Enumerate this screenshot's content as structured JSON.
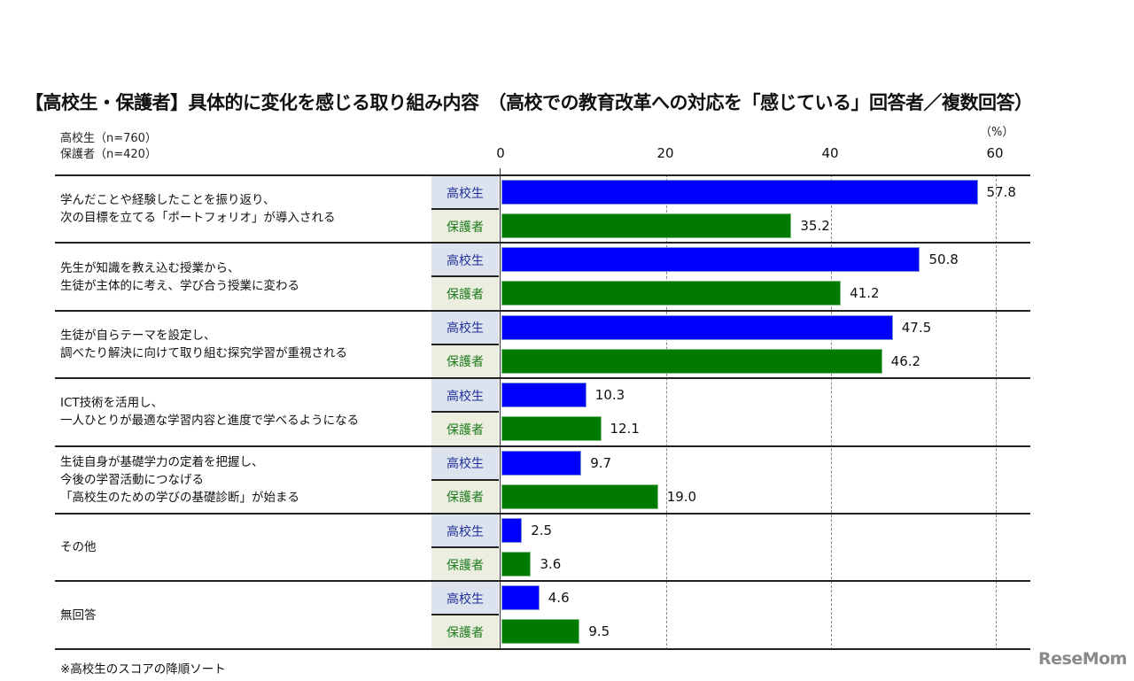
{
  "header": {
    "title": "【高校生・保護者】具体的に変化を感じる取り組み内容　（高校での教育改革への対応を「感じている」回答者／複数回答）",
    "n_students": "高校生（n=760）",
    "n_parents": "保護者（n=420）",
    "unit": "（%）"
  },
  "axis": {
    "ticks": [
      "0",
      "20",
      "40",
      "60"
    ]
  },
  "legend": {
    "students": "高校生",
    "parents": "保護者"
  },
  "rows": [
    {
      "label": "学んだことや経験したことを振り返り、\n次の目標を立てる「ポートフォリオ」が導入される",
      "students": "57.8",
      "parents": "35.2"
    },
    {
      "label": "先生が知識を教え込む授業から、\n生徒が主体的に考え、学び合う授業に変わる",
      "students": "50.8",
      "parents": "41.2"
    },
    {
      "label": "生徒が自らテーマを設定し、\n調べたり解決に向けて取り組む探究学習が重視される",
      "students": "47.5",
      "parents": "46.2"
    },
    {
      "label": "ICT技術を活用し、\n一人ひとりが最適な学習内容と進度で学べるようになる",
      "students": "10.3",
      "parents": "12.1"
    },
    {
      "label": "生徒自身が基礎学力の定着を把握し、\n今後の学習活動につなげる\n「高校生のための学びの基礎診断」が始まる",
      "students": "9.7",
      "parents": "19.0"
    },
    {
      "label": "その他",
      "students": "2.5",
      "parents": "3.6"
    },
    {
      "label": "無回答",
      "students": "4.6",
      "parents": "9.5"
    }
  ],
  "footnote": "※高校生のスコアの降順ソート",
  "watermark": "ReseMom",
  "colors": {
    "students_bar": "#0000ff",
    "parents_bar": "#007a00",
    "students_label_bg": "#dce3ee",
    "parents_label_bg": "#ecefe0"
  },
  "chart_data": {
    "type": "bar",
    "orientation": "horizontal",
    "title": "【高校生・保護者】具体的に変化を感じる取り組み内容　（高校での教育改革への対応を「感じている」回答者／複数回答）",
    "categories": [
      "学んだことや経験したことを振り返り、次の目標を立てる「ポートフォリオ」が導入される",
      "先生が知識を教え込む授業から、生徒が主体的に考え、学び合う授業に変わる",
      "生徒が自らテーマを設定し、調べたり解決に向けて取り組む探究学習が重視される",
      "ICT技術を活用し、一人ひとりが最適な学習内容と進度で学べるようになる",
      "生徒自身が基礎学力の定着を把握し、今後の学習活動につなげる「高校生のための学びの基礎診断」が始まる",
      "その他",
      "無回答"
    ],
    "series": [
      {
        "name": "高校生（n=760）",
        "color": "#0000ff",
        "values": [
          57.8,
          50.8,
          47.5,
          10.3,
          9.7,
          2.5,
          4.6
        ]
      },
      {
        "name": "保護者（n=420）",
        "color": "#007a00",
        "values": [
          35.2,
          41.2,
          46.2,
          12.1,
          19.0,
          3.6,
          9.5
        ]
      }
    ],
    "xlabel": "（%）",
    "ylabel": "",
    "xlim": [
      0,
      60
    ],
    "xticks": [
      0,
      20,
      40,
      60
    ],
    "grid": "dashed vertical at 20, 40, 60",
    "data_labels": true,
    "annotations": [
      "※高校生のスコアの降順ソート"
    ]
  }
}
